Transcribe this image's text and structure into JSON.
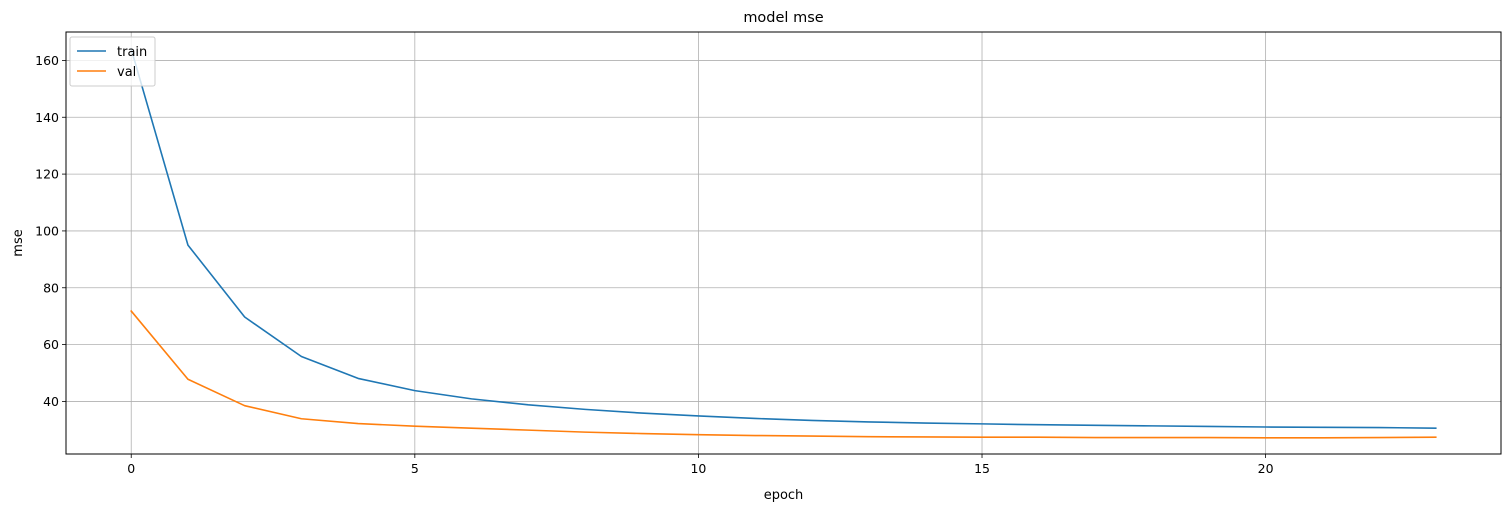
{
  "chart_data": {
    "type": "line",
    "title": "model mse",
    "xlabel": "epoch",
    "ylabel": "mse",
    "xlim": [
      -1.15,
      24.15
    ],
    "ylim": [
      21.5,
      170
    ],
    "xticks": [
      0,
      5,
      10,
      15,
      20
    ],
    "yticks": [
      40,
      60,
      80,
      100,
      120,
      140,
      160
    ],
    "grid": true,
    "legend_position": "upper-left",
    "x": [
      0,
      1,
      2,
      3,
      4,
      5,
      6,
      7,
      8,
      9,
      10,
      11,
      12,
      13,
      14,
      15,
      16,
      17,
      18,
      19,
      20,
      21,
      22,
      23
    ],
    "series": [
      {
        "name": "train",
        "color": "#1f77b4",
        "values": [
          164,
          95,
          69.7,
          55.8,
          48.1,
          43.8,
          40.9,
          38.8,
          37.2,
          35.9,
          34.9,
          34.0,
          33.3,
          32.8,
          32.4,
          32.1,
          31.8,
          31.6,
          31.4,
          31.2,
          31.0,
          30.9,
          30.8,
          30.6
        ]
      },
      {
        "name": "val",
        "color": "#ff7f0e",
        "values": [
          71.8,
          47.8,
          38.5,
          33.9,
          32.2,
          31.3,
          30.6,
          29.9,
          29.2,
          28.7,
          28.3,
          28.0,
          27.8,
          27.6,
          27.5,
          27.4,
          27.4,
          27.3,
          27.3,
          27.3,
          27.2,
          27.2,
          27.3,
          27.4
        ]
      }
    ]
  }
}
